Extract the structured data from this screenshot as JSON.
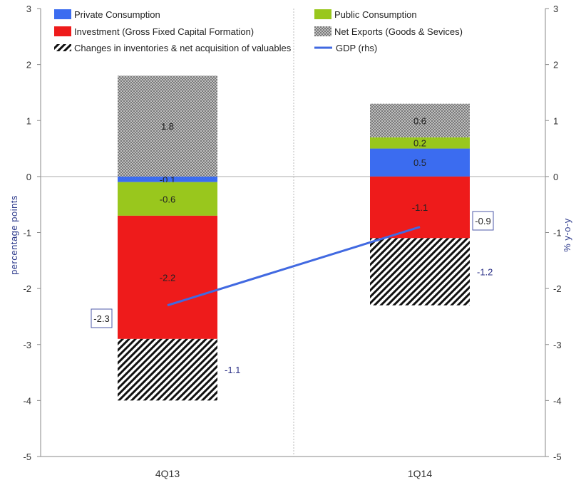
{
  "chart_data": {
    "type": "bar",
    "stacked": true,
    "categories": [
      "4Q13",
      "1Q14"
    ],
    "ylabel": "percentage points",
    "y2label": "% y-o-y",
    "ylim": [
      -5,
      3
    ],
    "y2lim": [
      -5,
      3
    ],
    "yticks": [
      "3",
      "2",
      "1",
      "0",
      "-1",
      "-2",
      "-3",
      "-4",
      "-5"
    ],
    "grid": "vertical center line only",
    "legend_position": "top",
    "series": [
      {
        "name": "Private Consumption",
        "color": "#3b6cf0",
        "pattern": "solid",
        "values": [
          -0.1,
          0.5
        ],
        "labels": [
          "-0.1",
          "0.5"
        ]
      },
      {
        "name": "Public Consumption",
        "color": "#99c71d",
        "pattern": "solid",
        "values": [
          -0.6,
          0.2
        ],
        "labels": [
          "-0.6",
          "0.2"
        ]
      },
      {
        "name": "Investment (Gross Fixed Capital Formation)",
        "color": "#ee1b1b",
        "pattern": "solid",
        "values": [
          -2.2,
          -1.1
        ],
        "labels": [
          "-2.2",
          "-1.1"
        ]
      },
      {
        "name": "Net Exports (Goods & Sevices)",
        "color": "#777777",
        "pattern": "crosshatch",
        "values": [
          1.8,
          0.6
        ],
        "labels": [
          "1.8",
          "0.6"
        ]
      },
      {
        "name": "Changes in inventories & net acquisition of valuables",
        "color": "#111111",
        "pattern": "diagonal",
        "values": [
          -1.1,
          -1.2
        ],
        "labels": [
          "-1.1",
          "-1.2"
        ]
      }
    ],
    "line": {
      "name": "GDP (rhs)",
      "color": "#4169e1",
      "values": [
        -2.3,
        -0.9
      ],
      "labels": [
        "-2.3",
        "-0.9"
      ]
    }
  }
}
